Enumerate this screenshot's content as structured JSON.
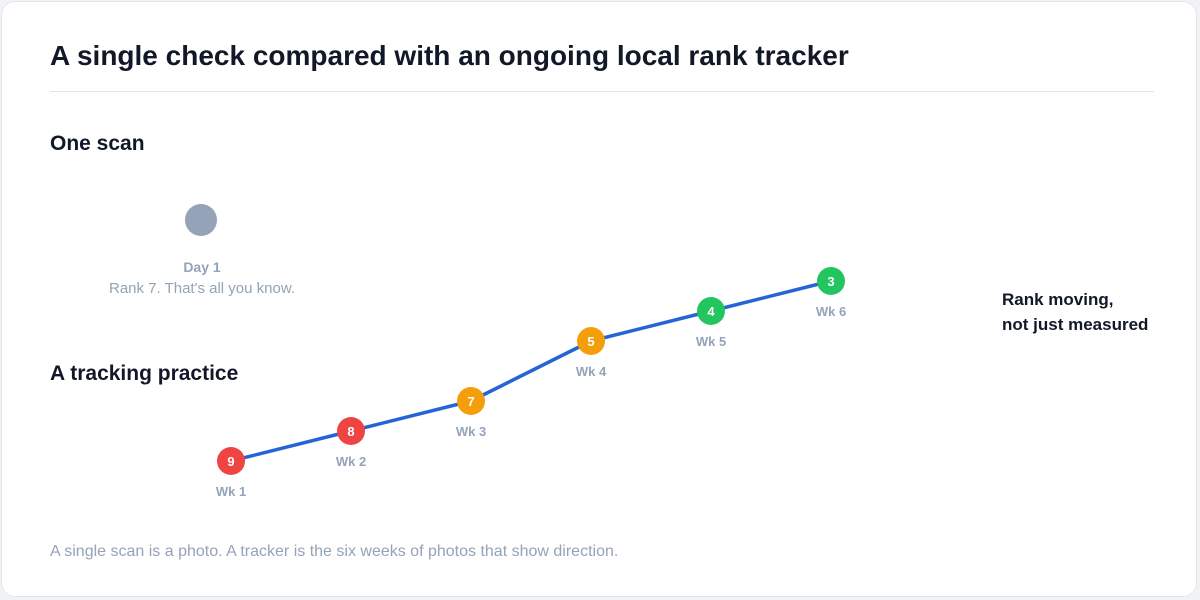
{
  "title": "A single check compared with an ongoing local rank tracker",
  "sections": {
    "one_scan": "One scan",
    "tracking": "A tracking practice"
  },
  "single_scan": {
    "label": "Day 1",
    "description": "Rank 7. That's all you know.",
    "color": "#94a3b8"
  },
  "callout": {
    "line1": "Rank moving,",
    "line2": "not just measured"
  },
  "caption": "A single scan is a photo. A tracker is the six weeks of photos that show direction.",
  "colors": {
    "line": "#2563d9",
    "poor": "#ef4444",
    "mid": "#f59e0b",
    "good": "#22c55e"
  },
  "chart_data": {
    "type": "line",
    "x": [
      "Wk 1",
      "Wk 2",
      "Wk 3",
      "Wk 4",
      "Wk 5",
      "Wk 6"
    ],
    "series": [
      {
        "values": [
          9,
          8,
          7,
          5,
          4,
          3
        ]
      }
    ],
    "marker_colors": [
      "#ef4444",
      "#ef4444",
      "#f59e0b",
      "#f59e0b",
      "#22c55e",
      "#22c55e"
    ]
  }
}
